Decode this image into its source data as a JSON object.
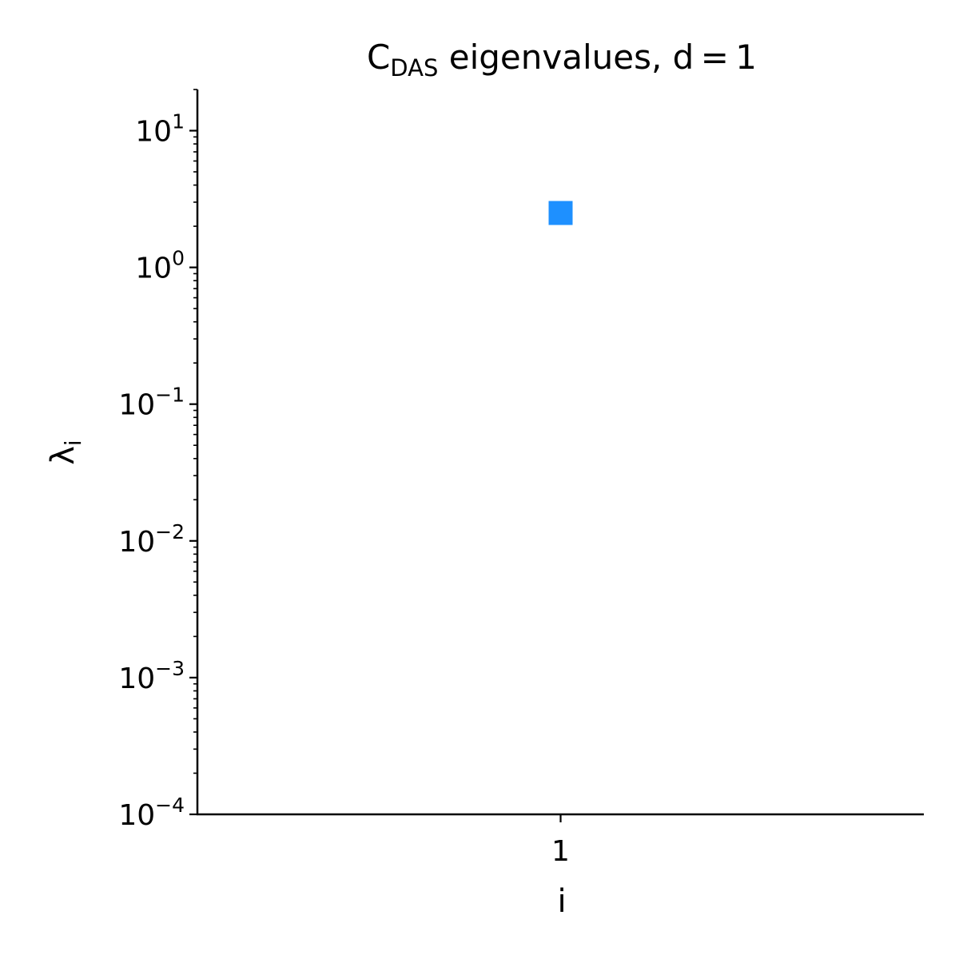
{
  "chart_data": {
    "type": "scatter",
    "title": {
      "main": "C",
      "subscript": "DAS",
      "rest": " eigenvalues, d = 1"
    },
    "xlabel": "i",
    "ylabel": {
      "main": "λ",
      "subscript": "i"
    },
    "x_ticks": [
      "1"
    ],
    "y_scale": "log",
    "ylim": [
      0.0001,
      20
    ],
    "xlim": [
      0,
      2
    ],
    "y_ticks": [
      {
        "value": 10,
        "base": "10",
        "exp": "1"
      },
      {
        "value": 1,
        "base": "10",
        "exp": "0"
      },
      {
        "value": 0.1,
        "base": "10",
        "exp": "−1"
      },
      {
        "value": 0.01,
        "base": "10",
        "exp": "−2"
      },
      {
        "value": 0.001,
        "base": "10",
        "exp": "−3"
      },
      {
        "value": 0.0001,
        "base": "10",
        "exp": "−4"
      }
    ],
    "series": [
      {
        "marker": "square",
        "color": "#1e90ff",
        "points": [
          {
            "x": 1,
            "y": 2.5
          }
        ]
      }
    ],
    "grid": false,
    "spines": "left-bottom"
  }
}
